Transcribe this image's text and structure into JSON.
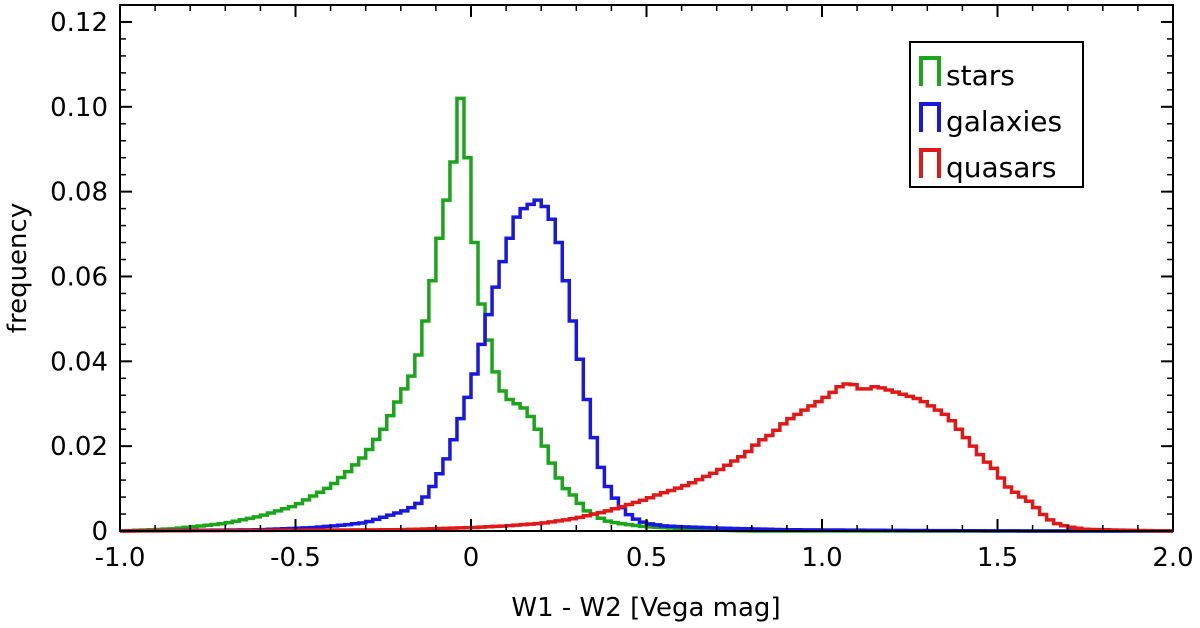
{
  "chart_data": {
    "type": "histogram",
    "xlabel": "W1 - W2 [Vega mag]",
    "ylabel": "frequency",
    "xlim": [
      -1.0,
      2.0
    ],
    "ylim": [
      0,
      0.124
    ],
    "x_ticks": [
      -1.0,
      -0.5,
      0,
      0.5,
      1.0,
      1.5,
      2.0
    ],
    "x_tick_labels": [
      "-1.0",
      "-0.5",
      "0",
      "0.5",
      "1.0",
      "1.5",
      "2.0"
    ],
    "y_ticks": [
      0,
      0.02,
      0.04,
      0.06,
      0.08,
      0.1,
      0.12
    ],
    "y_tick_labels": [
      "0",
      "0.02",
      "0.04",
      "0.06",
      "0.08",
      "0.10",
      "0.12"
    ],
    "bin_width": 0.02,
    "legend": {
      "position": "top-right"
    },
    "series": [
      {
        "name": "stars",
        "color": "#1aa51a",
        "points": [
          [
            -1.0,
            0
          ],
          [
            -0.85,
            0.0005
          ],
          [
            -0.7,
            0.0018
          ],
          [
            -0.6,
            0.0035
          ],
          [
            -0.5,
            0.006
          ],
          [
            -0.4,
            0.0105
          ],
          [
            -0.35,
            0.014
          ],
          [
            -0.3,
            0.018
          ],
          [
            -0.25,
            0.024
          ],
          [
            -0.2,
            0.032
          ],
          [
            -0.16,
            0.038
          ],
          [
            -0.14,
            0.045
          ],
          [
            -0.12,
            0.054
          ],
          [
            -0.1,
            0.064
          ],
          [
            -0.08,
            0.074
          ],
          [
            -0.06,
            0.082
          ],
          [
            -0.04,
            0.092
          ],
          [
            -0.03,
            0.102
          ],
          [
            -0.01,
            0.088
          ],
          [
            0.0,
            0.078
          ],
          [
            0.02,
            0.058
          ],
          [
            0.04,
            0.049
          ],
          [
            0.06,
            0.041
          ],
          [
            0.08,
            0.034
          ],
          [
            0.1,
            0.032
          ],
          [
            0.12,
            0.03
          ],
          [
            0.14,
            0.03
          ],
          [
            0.16,
            0.028
          ],
          [
            0.18,
            0.026
          ],
          [
            0.2,
            0.022
          ],
          [
            0.22,
            0.018
          ],
          [
            0.24,
            0.014
          ],
          [
            0.26,
            0.011
          ],
          [
            0.28,
            0.009
          ],
          [
            0.3,
            0.008
          ],
          [
            0.32,
            0.005
          ],
          [
            0.34,
            0.0045
          ],
          [
            0.36,
            0.0035
          ],
          [
            0.38,
            0.0025
          ],
          [
            0.42,
            0.0018
          ],
          [
            0.5,
            0.001
          ],
          [
            0.6,
            0.0006
          ],
          [
            0.7,
            0.0002
          ],
          [
            0.8,
            0
          ]
        ]
      },
      {
        "name": "galaxies",
        "color": "#1818e0",
        "points": [
          [
            -1.0,
            0
          ],
          [
            -0.6,
            0.0003
          ],
          [
            -0.45,
            0.0008
          ],
          [
            -0.35,
            0.0015
          ],
          [
            -0.3,
            0.002
          ],
          [
            -0.26,
            0.003
          ],
          [
            -0.22,
            0.004
          ],
          [
            -0.18,
            0.005
          ],
          [
            -0.14,
            0.007
          ],
          [
            -0.12,
            0.009
          ],
          [
            -0.1,
            0.012
          ],
          [
            -0.08,
            0.015
          ],
          [
            -0.06,
            0.019
          ],
          [
            -0.04,
            0.024
          ],
          [
            -0.02,
            0.029
          ],
          [
            0.0,
            0.034
          ],
          [
            0.02,
            0.04
          ],
          [
            0.04,
            0.048
          ],
          [
            0.06,
            0.054
          ],
          [
            0.08,
            0.061
          ],
          [
            0.1,
            0.066
          ],
          [
            0.12,
            0.072
          ],
          [
            0.14,
            0.076
          ],
          [
            0.16,
            0.076
          ],
          [
            0.18,
            0.078
          ],
          [
            0.2,
            0.078
          ],
          [
            0.22,
            0.075
          ],
          [
            0.24,
            0.072
          ],
          [
            0.26,
            0.064
          ],
          [
            0.28,
            0.054
          ],
          [
            0.3,
            0.045
          ],
          [
            0.32,
            0.036
          ],
          [
            0.34,
            0.026
          ],
          [
            0.36,
            0.018
          ],
          [
            0.38,
            0.012
          ],
          [
            0.4,
            0.009
          ],
          [
            0.42,
            0.0065
          ],
          [
            0.44,
            0.0045
          ],
          [
            0.46,
            0.0032
          ],
          [
            0.48,
            0.0024
          ],
          [
            0.5,
            0.0018
          ],
          [
            0.55,
            0.0012
          ],
          [
            0.6,
            0.001
          ],
          [
            0.7,
            0.0007
          ],
          [
            0.8,
            0.0005
          ],
          [
            0.9,
            0.0003
          ],
          [
            1.1,
            0.0002
          ],
          [
            1.3,
            0.0001
          ],
          [
            1.6,
            0
          ]
        ]
      },
      {
        "name": "quasars",
        "color": "#e01818",
        "points": [
          [
            -1.0,
            0
          ],
          [
            -0.2,
            0.0003
          ],
          [
            0.0,
            0.0008
          ],
          [
            0.1,
            0.0012
          ],
          [
            0.2,
            0.0018
          ],
          [
            0.26,
            0.0025
          ],
          [
            0.3,
            0.003
          ],
          [
            0.34,
            0.0038
          ],
          [
            0.38,
            0.0045
          ],
          [
            0.42,
            0.0055
          ],
          [
            0.46,
            0.0065
          ],
          [
            0.5,
            0.0075
          ],
          [
            0.54,
            0.0088
          ],
          [
            0.58,
            0.0098
          ],
          [
            0.62,
            0.011
          ],
          [
            0.66,
            0.0125
          ],
          [
            0.7,
            0.014
          ],
          [
            0.74,
            0.016
          ],
          [
            0.78,
            0.018
          ],
          [
            0.82,
            0.021
          ],
          [
            0.86,
            0.023
          ],
          [
            0.9,
            0.026
          ],
          [
            0.94,
            0.028
          ],
          [
            0.98,
            0.03
          ],
          [
            1.02,
            0.032
          ],
          [
            1.05,
            0.034
          ],
          [
            1.08,
            0.035
          ],
          [
            1.1,
            0.034
          ],
          [
            1.12,
            0.033
          ],
          [
            1.14,
            0.034
          ],
          [
            1.16,
            0.034
          ],
          [
            1.2,
            0.033
          ],
          [
            1.24,
            0.032
          ],
          [
            1.28,
            0.031
          ],
          [
            1.32,
            0.029
          ],
          [
            1.36,
            0.027
          ],
          [
            1.4,
            0.023
          ],
          [
            1.42,
            0.021
          ],
          [
            1.46,
            0.017
          ],
          [
            1.5,
            0.014
          ],
          [
            1.52,
            0.011
          ],
          [
            1.56,
            0.0085
          ],
          [
            1.6,
            0.0065
          ],
          [
            1.62,
            0.0045
          ],
          [
            1.66,
            0.002
          ],
          [
            1.7,
            0.001
          ],
          [
            1.75,
            0.0004
          ],
          [
            1.85,
            0.0002
          ],
          [
            2.0,
            0
          ]
        ]
      }
    ]
  }
}
